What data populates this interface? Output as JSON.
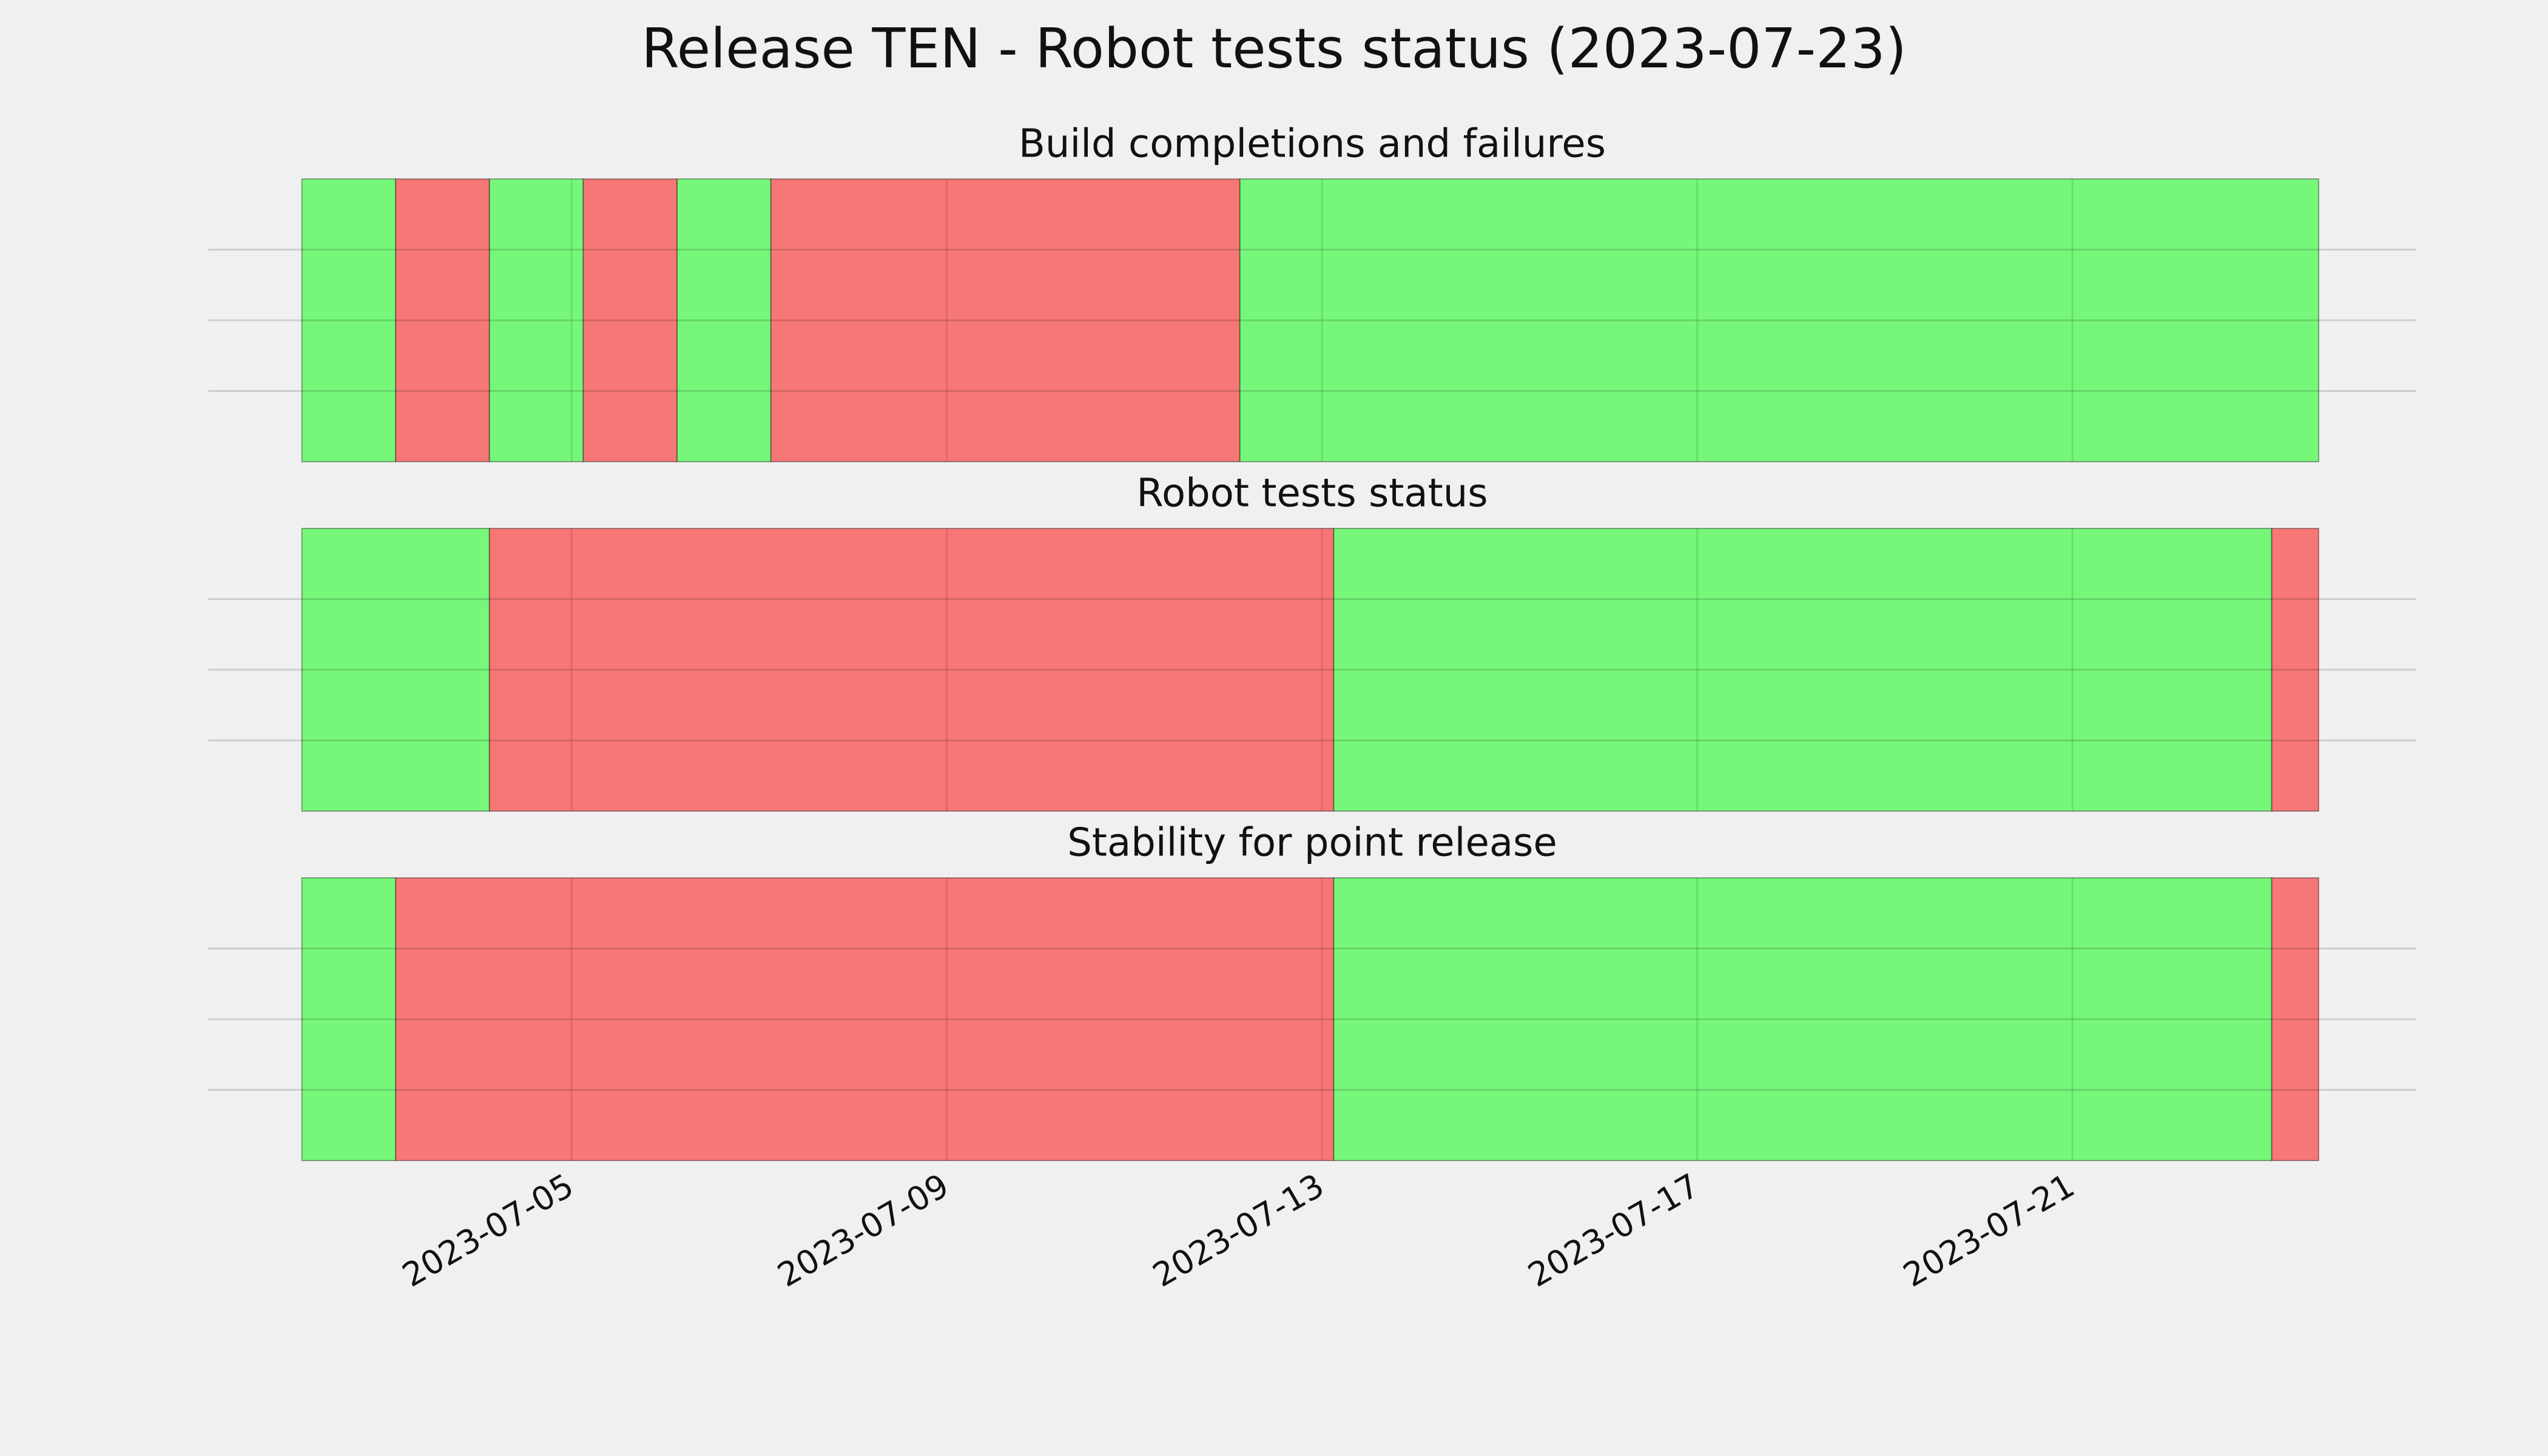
{
  "chart_data": {
    "type": "timeline",
    "title": "Release TEN - Robot tests status (2023-07-23)",
    "xlim": [
      "2023-07-01T03:00",
      "2023-07-24T16:00"
    ],
    "xticks": [
      "2023-07-05",
      "2023-07-09",
      "2023-07-13",
      "2023-07-17",
      "2023-07-21"
    ],
    "ylim": [
      0,
      1
    ],
    "yticks": [
      0.25,
      0.5,
      0.75
    ],
    "grid": true,
    "panels": [
      {
        "title": "Build completions and failures",
        "spans": [
          {
            "start": "2023-07-02T03:00",
            "end": "2023-07-03T03:00",
            "color": "#76f77a"
          },
          {
            "start": "2023-07-03T03:00",
            "end": "2023-07-04T03:00",
            "color": "#f77777"
          },
          {
            "start": "2023-07-04T03:00",
            "end": "2023-07-05T03:00",
            "color": "#76f77a"
          },
          {
            "start": "2023-07-05T03:00",
            "end": "2023-07-06T03:00",
            "color": "#f77777"
          },
          {
            "start": "2023-07-06T03:00",
            "end": "2023-07-07T03:00",
            "color": "#76f77a"
          },
          {
            "start": "2023-07-07T03:00",
            "end": "2023-07-12T03:00",
            "color": "#f77777"
          },
          {
            "start": "2023-07-12T03:00",
            "end": "2023-07-23T15:00",
            "color": "#76f77a"
          }
        ]
      },
      {
        "title": "Robot tests status",
        "spans": [
          {
            "start": "2023-07-02T03:00",
            "end": "2023-07-04T03:00",
            "color": "#76f77a"
          },
          {
            "start": "2023-07-04T03:00",
            "end": "2023-07-13T03:00",
            "color": "#f77777"
          },
          {
            "start": "2023-07-13T03:00",
            "end": "2023-07-23T03:00",
            "color": "#76f77a"
          },
          {
            "start": "2023-07-23T03:00",
            "end": "2023-07-23T15:00",
            "color": "#f77777"
          }
        ]
      },
      {
        "title": "Stability for point release",
        "spans": [
          {
            "start": "2023-07-02T03:00",
            "end": "2023-07-03T03:00",
            "color": "#76f77a"
          },
          {
            "start": "2023-07-03T03:00",
            "end": "2023-07-13T03:00",
            "color": "#f77777"
          },
          {
            "start": "2023-07-13T03:00",
            "end": "2023-07-23T03:00",
            "color": "#76f77a"
          },
          {
            "start": "2023-07-23T03:00",
            "end": "2023-07-23T15:00",
            "color": "#f77777"
          }
        ]
      }
    ]
  }
}
